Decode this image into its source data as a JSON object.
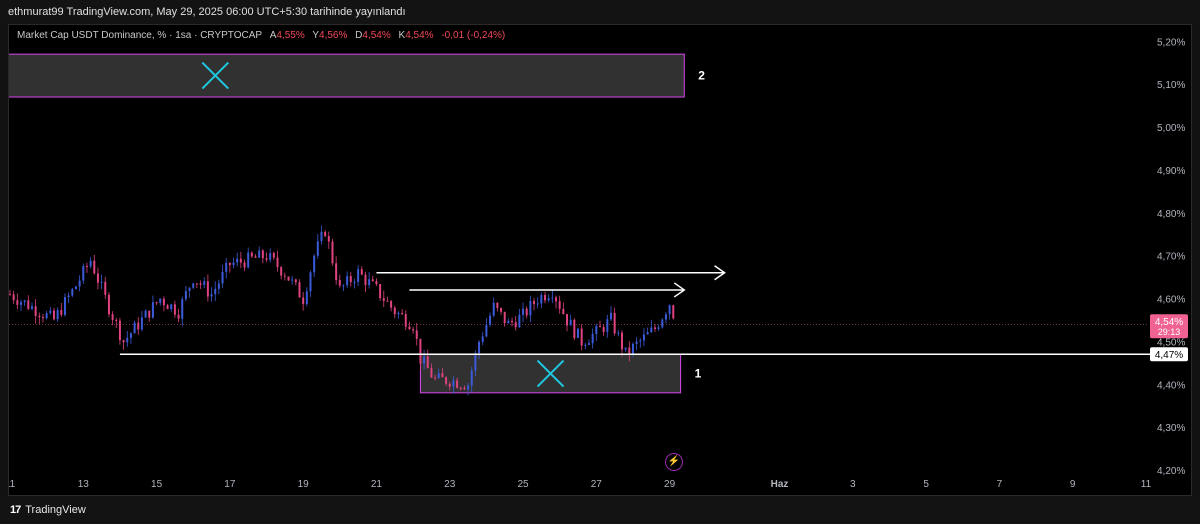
{
  "header": {
    "publish_line": "ethmurat99 TradingView.com, May 29, 2025 06:00 UTC+5:30 tarihinde yayınlandı"
  },
  "legend": {
    "symbol": "Market Cap USDT Dominance, % · 1sa · CRYPTOCAP",
    "open_label": "A",
    "open_value": "4,55%",
    "high_label": "Y",
    "high_value": "4,56%",
    "low_label": "D",
    "low_value": "4,54%",
    "close_label": "K",
    "close_value": "4,54%",
    "change": "-0,01 (-0,24%)"
  },
  "footer": {
    "brand": "TradingView",
    "logo": "17"
  },
  "colors": {
    "background": "#000000",
    "up": "#3b5bdb",
    "down": "#e0437f",
    "line": "#ffffff",
    "box_fill": "#3a3a3a",
    "box_border": "#d946ef",
    "cross": "#1ec8e0",
    "price_badge": "#f06292",
    "axis_text": "#b2b5be"
  },
  "chart_data": {
    "type": "candlestick",
    "title": "",
    "xlabel": "",
    "ylabel": "",
    "x_labels": [
      "11",
      "13",
      "15",
      "17",
      "19",
      "21",
      "23",
      "25",
      "27",
      "29",
      "Haz",
      "3",
      "5",
      "7",
      "9",
      "11"
    ],
    "y_ticks": [
      "5,20%",
      "5,10%",
      "5,00%",
      "4,90%",
      "4,80%",
      "4,70%",
      "4,60%",
      "4,50%",
      "4,40%",
      "4,30%",
      "4,20%"
    ],
    "ylim": [
      4.2,
      5.21
    ],
    "current_price": "4,54%",
    "countdown": "29:13",
    "level_label": "4,47%",
    "level_value": 4.47,
    "grid": false,
    "series_path": [
      {
        "day": 11.0,
        "v": 4.61
      },
      {
        "day": 11.6,
        "v": 4.58
      },
      {
        "day": 12.2,
        "v": 4.55
      },
      {
        "day": 12.8,
        "v": 4.63
      },
      {
        "day": 13.2,
        "v": 4.69
      },
      {
        "day": 13.6,
        "v": 4.6
      },
      {
        "day": 14.1,
        "v": 4.5
      },
      {
        "day": 14.6,
        "v": 4.55
      },
      {
        "day": 15.1,
        "v": 4.6
      },
      {
        "day": 15.6,
        "v": 4.57
      },
      {
        "day": 16.0,
        "v": 4.65
      },
      {
        "day": 16.5,
        "v": 4.61
      },
      {
        "day": 17.0,
        "v": 4.68
      },
      {
        "day": 17.5,
        "v": 4.69
      },
      {
        "day": 18.0,
        "v": 4.7
      },
      {
        "day": 18.5,
        "v": 4.66
      },
      {
        "day": 19.0,
        "v": 4.6
      },
      {
        "day": 19.3,
        "v": 4.7
      },
      {
        "day": 19.6,
        "v": 4.76
      },
      {
        "day": 20.0,
        "v": 4.62
      },
      {
        "day": 20.5,
        "v": 4.66
      },
      {
        "day": 21.0,
        "v": 4.62
      },
      {
        "day": 21.5,
        "v": 4.57
      },
      {
        "day": 22.0,
        "v": 4.54
      },
      {
        "day": 22.2,
        "v": 4.46
      },
      {
        "day": 22.6,
        "v": 4.41
      },
      {
        "day": 23.0,
        "v": 4.41
      },
      {
        "day": 23.5,
        "v": 4.4
      },
      {
        "day": 23.8,
        "v": 4.5
      },
      {
        "day": 24.2,
        "v": 4.58
      },
      {
        "day": 24.6,
        "v": 4.54
      },
      {
        "day": 25.0,
        "v": 4.56
      },
      {
        "day": 25.4,
        "v": 4.6
      },
      {
        "day": 25.8,
        "v": 4.62
      },
      {
        "day": 26.2,
        "v": 4.55
      },
      {
        "day": 26.6,
        "v": 4.5
      },
      {
        "day": 27.0,
        "v": 4.52
      },
      {
        "day": 27.4,
        "v": 4.55
      },
      {
        "day": 27.8,
        "v": 4.47
      },
      {
        "day": 28.2,
        "v": 4.5
      },
      {
        "day": 28.6,
        "v": 4.53
      },
      {
        "day": 29.0,
        "v": 4.59
      },
      {
        "day": 29.2,
        "v": 4.54
      }
    ],
    "annotations": {
      "boxes": [
        {
          "label": "2",
          "x0": 10.9,
          "x1": 29.4,
          "y0": 5.07,
          "y1": 5.17
        },
        {
          "label": "1",
          "x0": 22.2,
          "x1": 29.3,
          "y0": 4.38,
          "y1": 4.47
        }
      ],
      "horizontal_line": {
        "x0": 14.0,
        "y": 4.47
      },
      "arrows": [
        {
          "x0": 21.0,
          "x1": 30.5,
          "y": 4.66
        },
        {
          "x0": 21.9,
          "x1": 29.4,
          "y": 4.62
        }
      ]
    }
  }
}
